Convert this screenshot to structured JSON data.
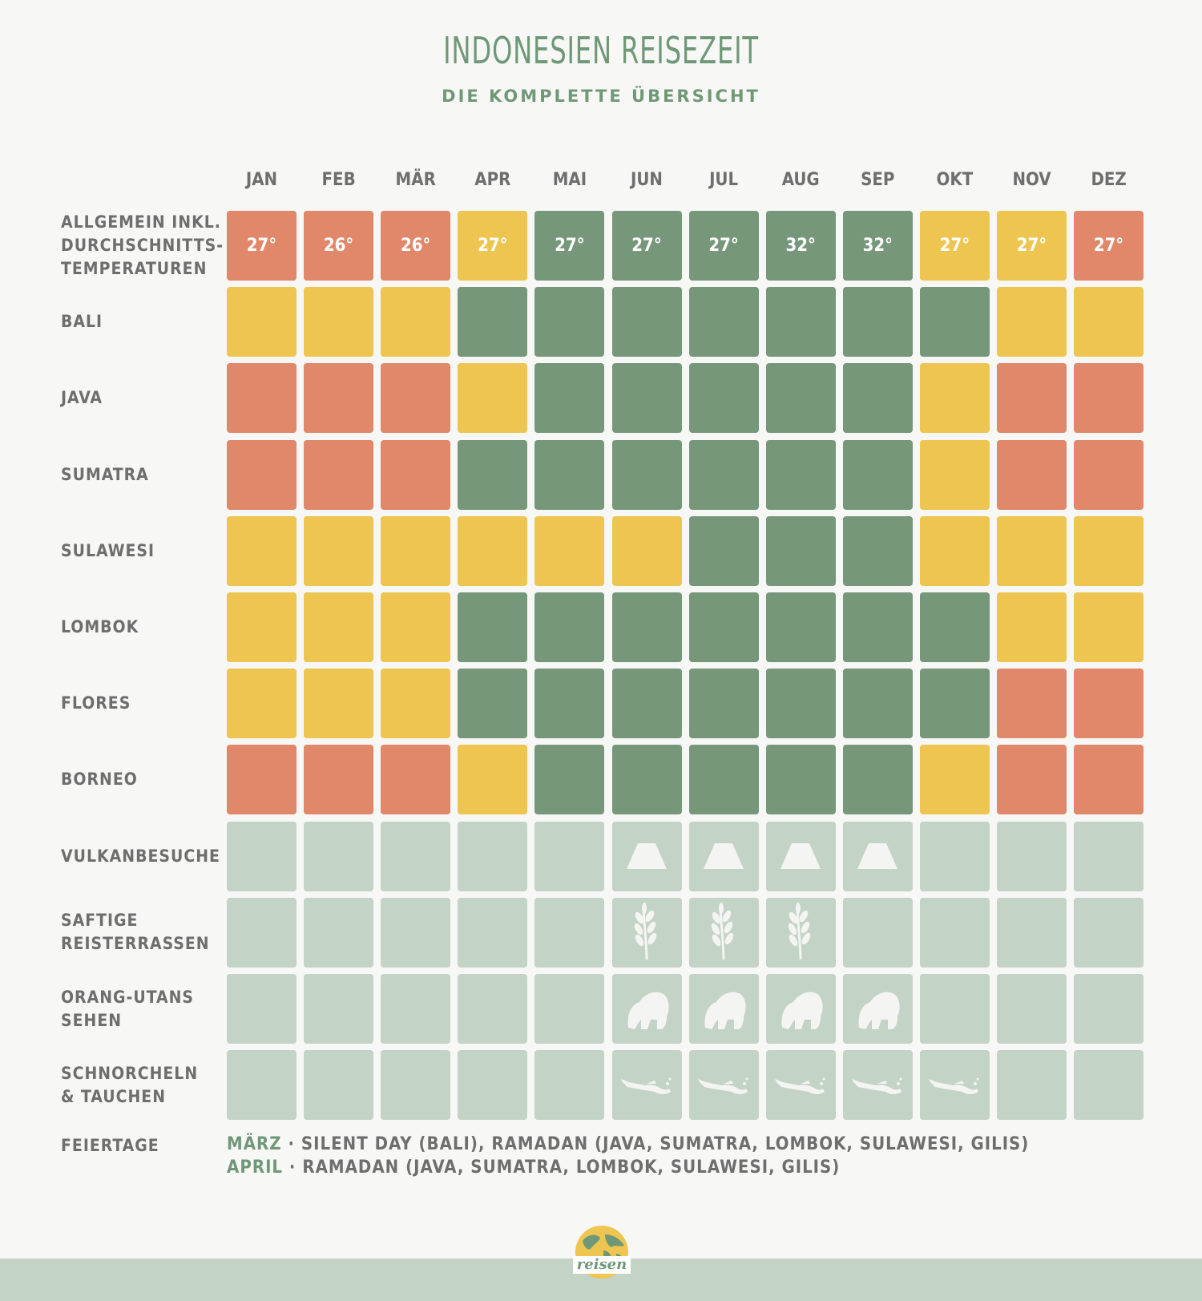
{
  "header": {
    "title": "INDONESIEN REISEZEIT",
    "subtitle": "DIE KOMPLETTE ÜBERSICHT"
  },
  "colors": {
    "good": "#76977a",
    "medium": "#edc550",
    "bad": "#e08869",
    "activity_bg": "#c3d3c5",
    "text": "#6e6e6e",
    "accent": "#6f9877"
  },
  "chart_data": {
    "type": "heatmap",
    "months": [
      "JAN",
      "FEB",
      "MÄR",
      "APR",
      "MAI",
      "JUN",
      "JUL",
      "AUG",
      "SEP",
      "OKT",
      "NOV",
      "DEZ"
    ],
    "rows": [
      {
        "label": [
          "ALLGEMEIN INKL.",
          "DURCHSCHNITTS-",
          "TEMPERATUREN"
        ],
        "ratings": [
          "bad",
          "bad",
          "bad",
          "medium",
          "good",
          "good",
          "good",
          "good",
          "good",
          "medium",
          "medium",
          "bad"
        ],
        "temperatures": [
          "27°",
          "26°",
          "26°",
          "27°",
          "27°",
          "27°",
          "27°",
          "32°",
          "32°",
          "27°",
          "27°",
          "27°"
        ]
      },
      {
        "label": [
          "BALI"
        ],
        "ratings": [
          "medium",
          "medium",
          "medium",
          "good",
          "good",
          "good",
          "good",
          "good",
          "good",
          "good",
          "medium",
          "medium"
        ]
      },
      {
        "label": [
          "JAVA"
        ],
        "ratings": [
          "bad",
          "bad",
          "bad",
          "medium",
          "good",
          "good",
          "good",
          "good",
          "good",
          "medium",
          "bad",
          "bad"
        ]
      },
      {
        "label": [
          "SUMATRA"
        ],
        "ratings": [
          "bad",
          "bad",
          "bad",
          "good",
          "good",
          "good",
          "good",
          "good",
          "good",
          "medium",
          "bad",
          "bad"
        ]
      },
      {
        "label": [
          "SULAWESI"
        ],
        "ratings": [
          "medium",
          "medium",
          "medium",
          "medium",
          "medium",
          "medium",
          "good",
          "good",
          "good",
          "medium",
          "medium",
          "medium"
        ]
      },
      {
        "label": [
          "LOMBOK"
        ],
        "ratings": [
          "medium",
          "medium",
          "medium",
          "good",
          "good",
          "good",
          "good",
          "good",
          "good",
          "good",
          "medium",
          "medium"
        ]
      },
      {
        "label": [
          "FLORES"
        ],
        "ratings": [
          "medium",
          "medium",
          "medium",
          "good",
          "good",
          "good",
          "good",
          "good",
          "good",
          "good",
          "bad",
          "bad"
        ]
      },
      {
        "label": [
          "BORNEO"
        ],
        "ratings": [
          "bad",
          "bad",
          "bad",
          "medium",
          "good",
          "good",
          "good",
          "good",
          "good",
          "medium",
          "bad",
          "bad"
        ]
      }
    ],
    "activities": [
      {
        "label": [
          "VULKANBESUCHE"
        ],
        "icon": "volcano-icon",
        "months_active": [
          "JUN",
          "JUL",
          "AUG",
          "SEP"
        ]
      },
      {
        "label": [
          "SAFTIGE",
          "REISTERRASSEN"
        ],
        "icon": "rice-plant-icon",
        "months_active": [
          "JUN",
          "JUL",
          "AUG"
        ]
      },
      {
        "label": [
          "ORANG-UTANS",
          "SEHEN"
        ],
        "icon": "orangutan-icon",
        "months_active": [
          "JUN",
          "JUL",
          "AUG",
          "SEP"
        ]
      },
      {
        "label": [
          "SCHNORCHELN",
          "& TAUCHEN"
        ],
        "icon": "diver-icon",
        "months_active": [
          "JUN",
          "JUL",
          "AUG",
          "SEP",
          "OKT"
        ]
      }
    ]
  },
  "holidays": {
    "label": "FEIERTAGE",
    "entries": [
      {
        "month": "MÄRZ",
        "text": " · SILENT DAY (BALI), RAMADAN (JAVA, SUMATRA, LOMBOK, SULAWESI, GILIS)"
      },
      {
        "month": "APRIL",
        "text": " · RAMADAN (JAVA, SUMATRA, LOMBOK, SULAWESI, GILIS)"
      }
    ]
  },
  "footer": {
    "logo_icon": "globe-logo-icon",
    "logo_text": "reisen"
  }
}
